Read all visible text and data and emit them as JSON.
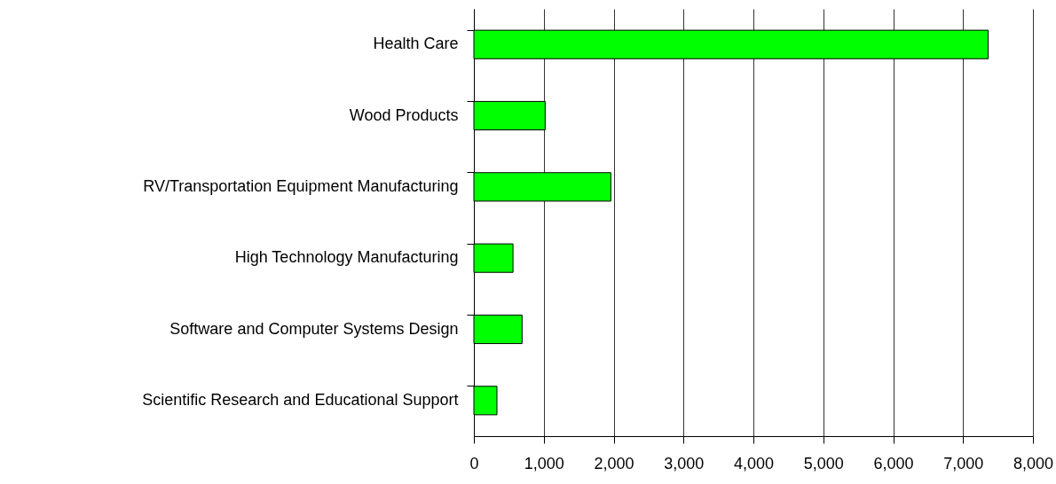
{
  "chart_data": {
    "type": "bar",
    "orientation": "horizontal",
    "categories": [
      "Health Care",
      "Wood Products",
      "RV/Transportation Equipment Manufacturing",
      "High Technology Manufacturing",
      "Software and Computer Systems Design",
      "Scientific Research and Educational Support"
    ],
    "values": [
      7360,
      1020,
      1960,
      560,
      690,
      330
    ],
    "color": "#00ff00",
    "xlim": [
      0,
      8000
    ],
    "xticks": [
      {
        "value": 0,
        "label": "0"
      },
      {
        "value": 1000,
        "label": "1,000"
      },
      {
        "value": 2000,
        "label": "2,000"
      },
      {
        "value": 3000,
        "label": "3,000"
      },
      {
        "value": 4000,
        "label": "4,000"
      },
      {
        "value": 5000,
        "label": "5,000"
      },
      {
        "value": 6000,
        "label": "6,000"
      },
      {
        "value": 7000,
        "label": "7,000"
      },
      {
        "value": 8000,
        "label": "8,000"
      }
    ],
    "grid": "x"
  }
}
